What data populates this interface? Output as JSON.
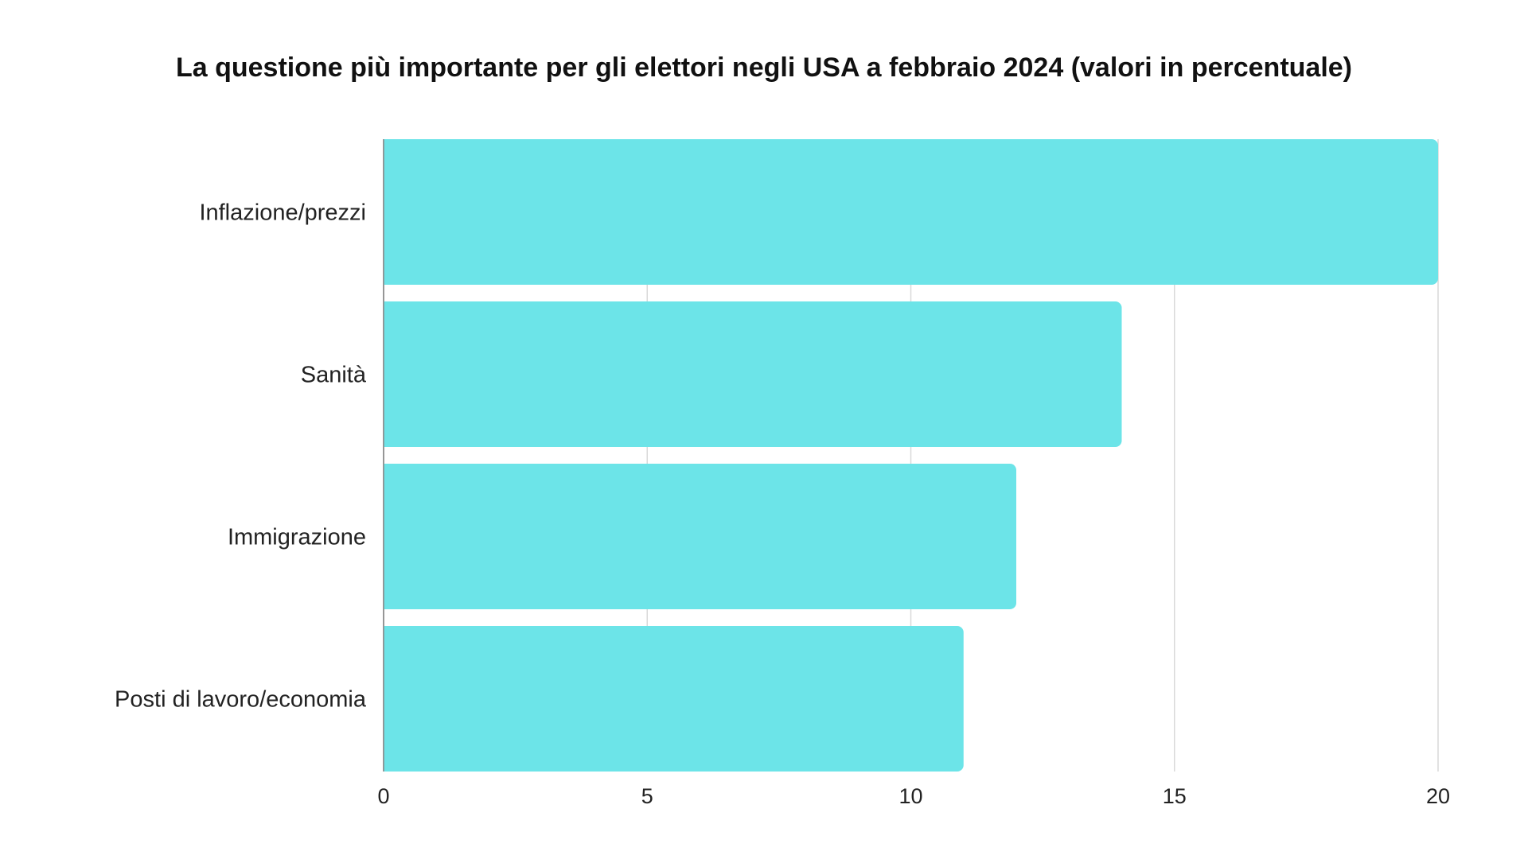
{
  "chart_data": {
    "type": "bar",
    "orientation": "horizontal",
    "title": "La questione più importante per gli elettori negli USA a febbraio 2024 (valori in percentuale)",
    "categories": [
      "Inflazione/prezzi",
      "Sanità",
      "Immigrazione",
      "Posti di lavoro/economia"
    ],
    "values": [
      20,
      14,
      12,
      11
    ],
    "xlabel": "",
    "ylabel": "",
    "xlim": [
      0,
      20
    ],
    "xticks": [
      "0",
      "5",
      "10",
      "15",
      "20"
    ],
    "grid": "vertical",
    "legend": "none",
    "bar_color": "#6ce4e8",
    "grid_color": "#d9d9d9"
  }
}
